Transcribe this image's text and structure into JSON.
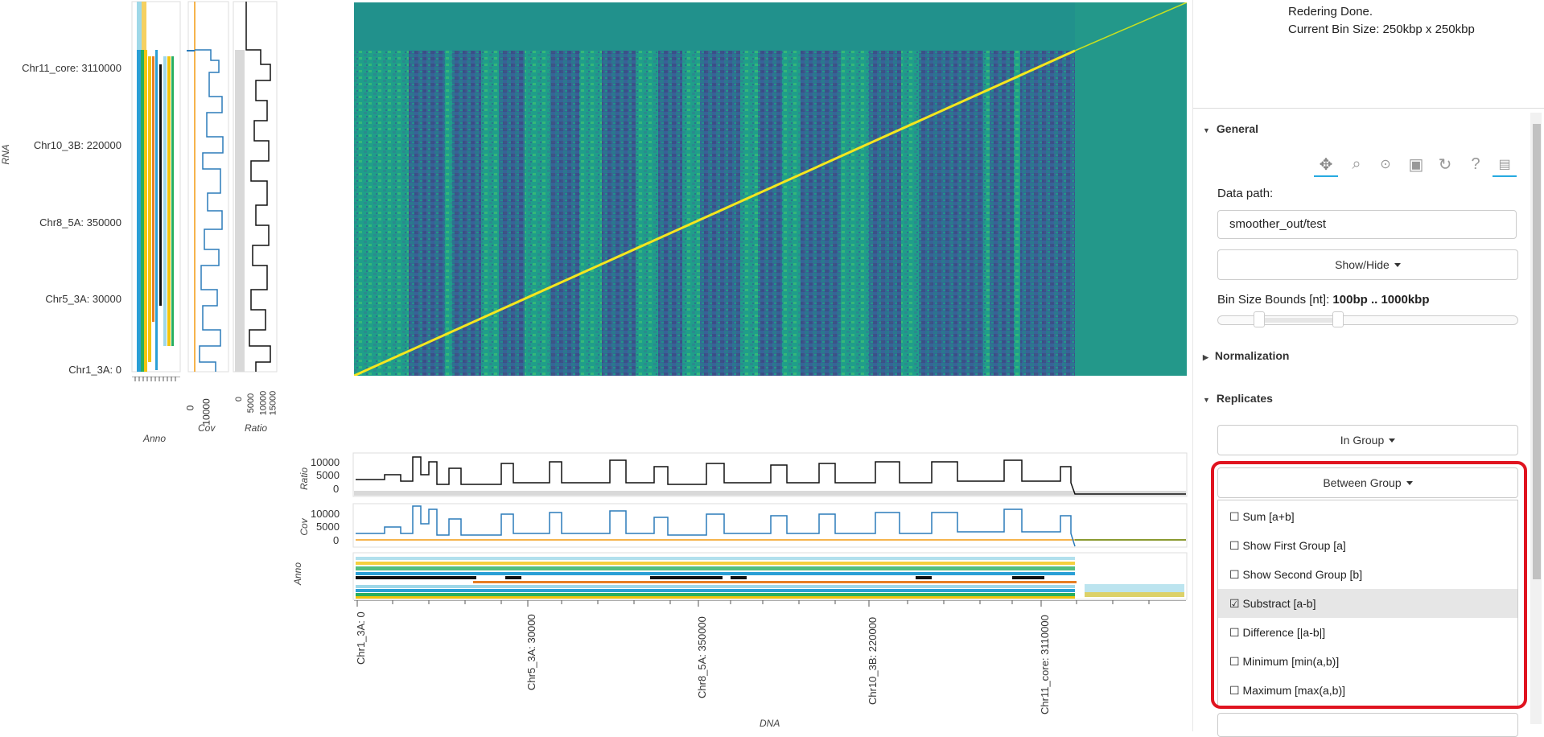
{
  "status": {
    "line1": "Redering Done.",
    "line2": "Current Bin Size: 250kbp x 250kbp"
  },
  "axes": {
    "y_label": "RNA",
    "x_label": "DNA",
    "y_ticks": [
      "Chr11_core: 3110000",
      "Chr10_3B: 220000",
      "Chr8_5A: 350000",
      "Chr5_3A: 30000",
      "Chr1_3A: 0"
    ],
    "x_ticks": [
      "Chr1_3A: 0",
      "Chr5_3A: 30000",
      "Chr8_5A: 350000",
      "Chr10_3B: 220000",
      "Chr11_core: 3110000"
    ],
    "side_labels": {
      "anno": "Anno",
      "cov": "Cov",
      "ratio": "Ratio"
    },
    "cov_ticks": [
      "0",
      "10000"
    ],
    "ratio_ticks": [
      "0",
      "5000",
      "10000",
      "15000"
    ],
    "bottom_ratio_ticks": [
      "10000",
      "5000",
      "0"
    ],
    "bottom_cov_ticks": [
      "10000",
      "5000",
      "0"
    ]
  },
  "sections": {
    "general": "General",
    "normalization": "Normalization",
    "replicates": "Replicates"
  },
  "toolbar": {
    "icons": [
      "pan-icon",
      "box-zoom-icon",
      "wheel-zoom-icon",
      "save-icon",
      "reset-icon",
      "help-icon",
      "hover-icon"
    ]
  },
  "general": {
    "data_path_label": "Data path:",
    "data_path_value": "smoother_out/test",
    "show_hide_label": "Show/Hide",
    "bin_bounds_label": "Bin Size Bounds [nt]:",
    "bin_bounds_value": "100bp .. 1000kbp"
  },
  "replicates": {
    "in_group_label": "In Group",
    "between_group_label": "Between Group",
    "options": [
      {
        "label": "☐ Sum [a+b]",
        "selected": false
      },
      {
        "label": "☐ Show First Group [a]",
        "selected": false
      },
      {
        "label": "☐ Show Second Group [b]",
        "selected": false
      },
      {
        "label": "☑ Substract [a-b]",
        "selected": true
      },
      {
        "label": "☐ Difference [|a-b|]",
        "selected": false
      },
      {
        "label": "☐ Minimum [min(a,b)]",
        "selected": false
      },
      {
        "label": "☐ Maximum [max(a,b)]",
        "selected": false
      }
    ]
  },
  "colors": {
    "heatmap_bg": "#1f9e8a",
    "heatmap_low": "#3b5a9a",
    "diagonal": "#f5e61e",
    "cov_line": "#2b7bba",
    "ratio_line": "#111111",
    "highlight": "#e01420"
  }
}
